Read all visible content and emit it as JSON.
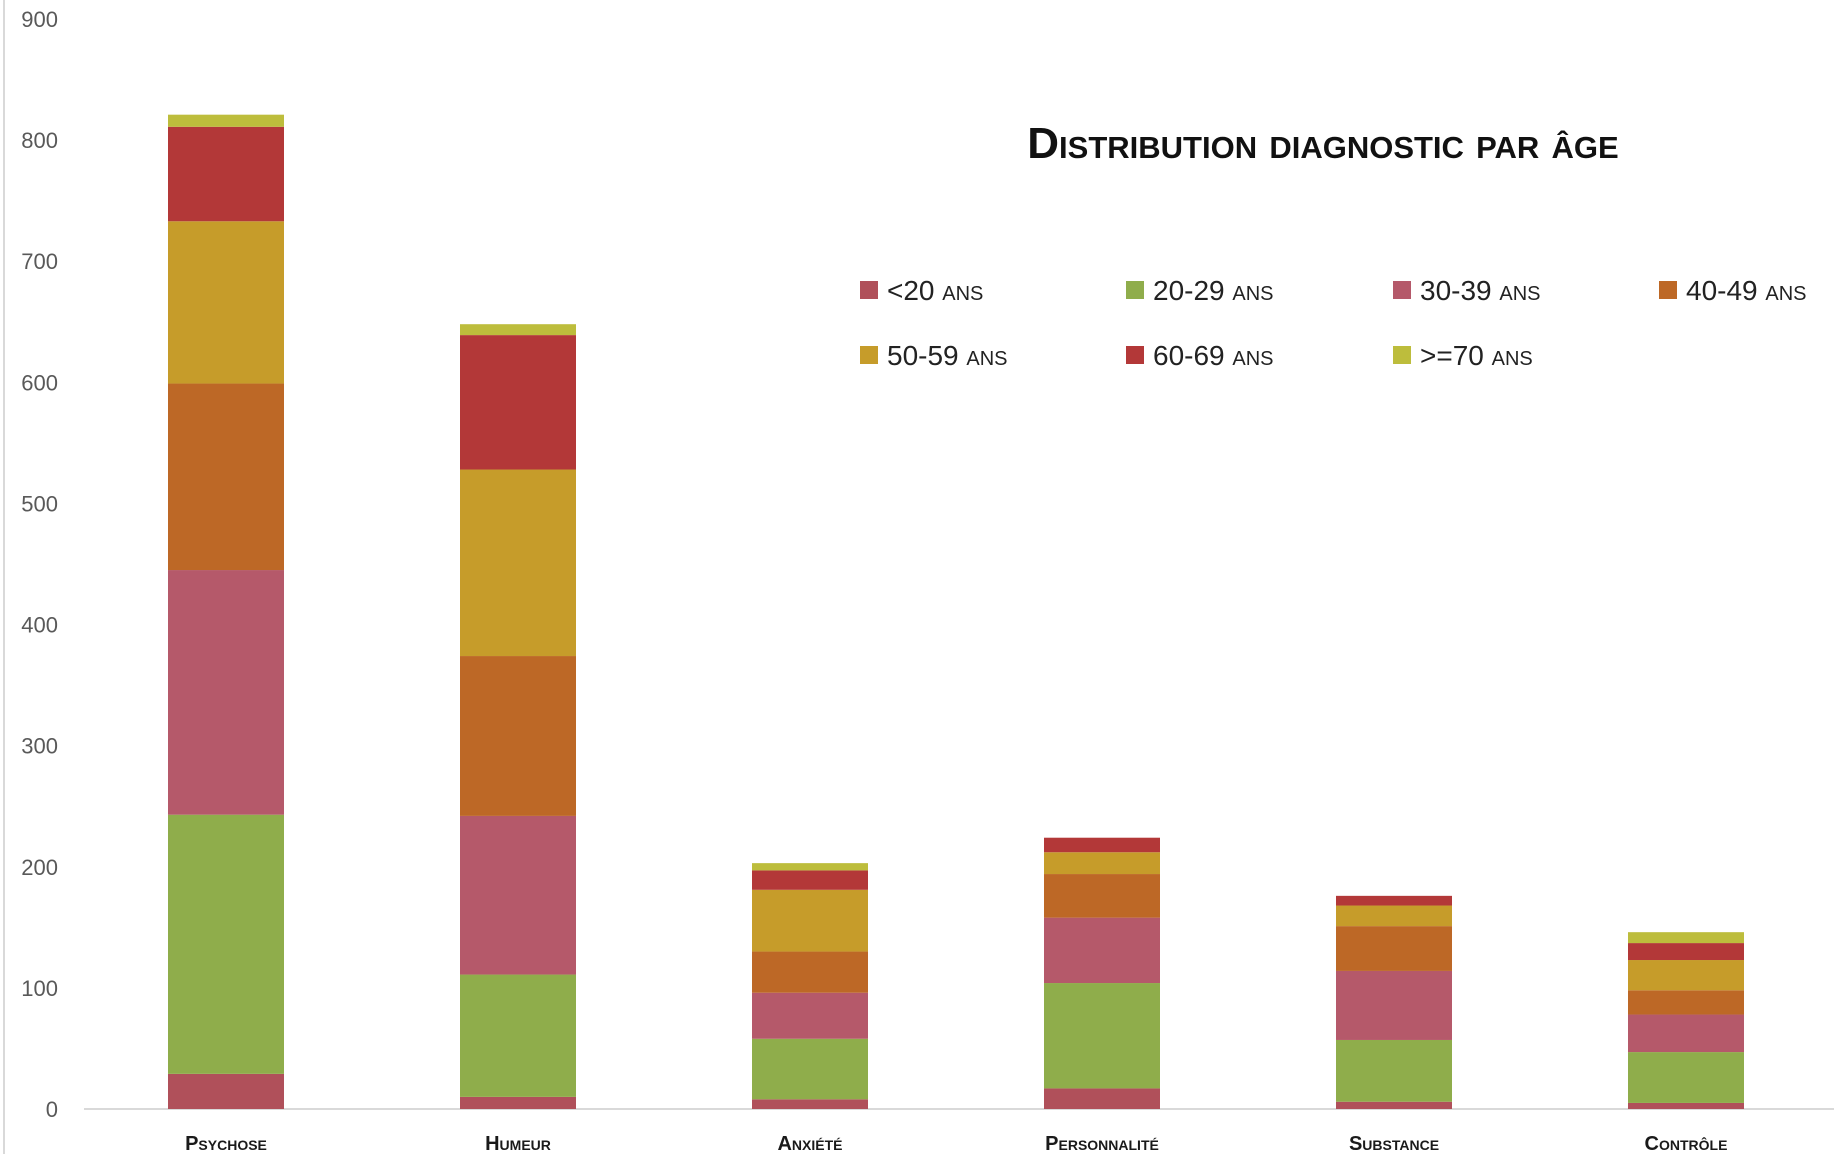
{
  "chart_data": {
    "type": "bar",
    "stacked": true,
    "title": "Distribution diagnostic par âge",
    "xlabel": "",
    "ylabel": "",
    "ylim": [
      0,
      900
    ],
    "yticks": [
      0,
      100,
      200,
      300,
      400,
      500,
      600,
      700,
      800,
      900
    ],
    "grid": false,
    "legend_position": "top-right",
    "categories": [
      "Psychose",
      "Humeur",
      "Anxiété",
      "Personnalité",
      "Substance",
      "Contrôle"
    ],
    "series": [
      {
        "name": "<20 ans",
        "color": "#b0505a",
        "values": [
          29,
          10,
          8,
          17,
          6,
          5
        ]
      },
      {
        "name": "20-29 ans",
        "color": "#8fad4b",
        "values": [
          214,
          101,
          50,
          87,
          51,
          42
        ]
      },
      {
        "name": "30-39 ans",
        "color": "#b5596a",
        "values": [
          202,
          131,
          38,
          54,
          57,
          31
        ]
      },
      {
        "name": "40-49 ans",
        "color": "#bd6826",
        "values": [
          154,
          132,
          34,
          36,
          37,
          20
        ]
      },
      {
        "name": "50-59 ans",
        "color": "#c69c2a",
        "values": [
          134,
          154,
          51,
          18,
          17,
          25
        ]
      },
      {
        "name": "60-69 ans",
        "color": "#b33838",
        "values": [
          78,
          111,
          16,
          12,
          8,
          14
        ]
      },
      {
        "name": ">=70 ans",
        "color": "#bdbd3c",
        "values": [
          10,
          9,
          6,
          0,
          0,
          9
        ]
      }
    ]
  }
}
